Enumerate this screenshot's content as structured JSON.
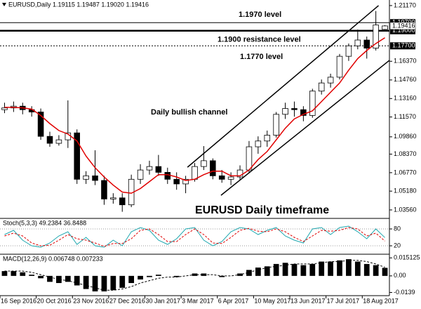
{
  "chart_data": [
    {
      "type": "candlestick",
      "title": "EURUSD,Daily  1.19115 1.19487 1.19020 1.19416",
      "subtitle": "EURUSD Daily timeframe",
      "categories": [
        "16 Sep 2016",
        null,
        null,
        null,
        "20 Oct 2016",
        null,
        null,
        null,
        "23 Nov 2016",
        null,
        null,
        null,
        "27 Dec 2016",
        null,
        null,
        null,
        "30 Jan 2017",
        null,
        null,
        null,
        "3 Mar 2017",
        null,
        null,
        null,
        "6 Apr 2017",
        null,
        null,
        null,
        "10 May 2017",
        null,
        null,
        null,
        "13 Jun 2017",
        null,
        null,
        null,
        "17 Jul 2017",
        null,
        null,
        null,
        "18 Aug 2017",
        null,
        null
      ],
      "open": [
        1.122,
        1.1235,
        1.125,
        1.122,
        1.12,
        1.099,
        1.093,
        1.096,
        1.102,
        1.062,
        1.065,
        1.061,
        1.045,
        1.046,
        1.04,
        1.062,
        1.07,
        1.073,
        1.068,
        1.062,
        1.058,
        1.062,
        1.073,
        1.078,
        1.065,
        1.062,
        1.064,
        1.07,
        1.09,
        1.095,
        1.1,
        1.118,
        1.123,
        1.122,
        1.117,
        1.138,
        1.145,
        1.15,
        1.168,
        1.177,
        1.182,
        1.175,
        1.19115
      ],
      "high": [
        1.128,
        1.129,
        1.128,
        1.125,
        1.123,
        1.103,
        1.1,
        1.13,
        1.105,
        1.069,
        1.087,
        1.065,
        1.05,
        1.05,
        1.066,
        1.075,
        1.078,
        1.083,
        1.072,
        1.068,
        1.065,
        1.076,
        1.0906,
        1.08,
        1.07,
        1.068,
        1.074,
        1.095,
        1.099,
        1.104,
        1.12,
        1.128,
        1.129,
        1.125,
        1.14,
        1.148,
        1.153,
        1.17,
        1.179,
        1.191,
        1.185,
        1.207,
        1.19487
      ],
      "low": [
        1.119,
        1.12,
        1.118,
        1.116,
        1.096,
        1.09,
        1.091,
        1.089,
        1.058,
        1.058,
        1.057,
        1.04,
        1.041,
        1.034,
        1.038,
        1.058,
        1.066,
        1.065,
        1.058,
        1.053,
        1.05,
        1.06,
        1.07,
        1.062,
        1.059,
        1.057,
        1.061,
        1.068,
        1.084,
        1.09,
        1.098,
        1.114,
        1.116,
        1.112,
        1.115,
        1.135,
        1.141,
        1.148,
        1.164,
        1.174,
        1.166,
        1.173,
        1.1902
      ],
      "close": [
        1.1235,
        1.125,
        1.122,
        1.12,
        1.099,
        1.093,
        1.096,
        1.102,
        1.062,
        1.065,
        1.061,
        1.045,
        1.046,
        1.04,
        1.062,
        1.07,
        1.073,
        1.068,
        1.062,
        1.058,
        1.062,
        1.073,
        1.078,
        1.065,
        1.062,
        1.064,
        1.07,
        1.09,
        1.095,
        1.1,
        1.118,
        1.123,
        1.122,
        1.117,
        1.138,
        1.145,
        1.15,
        1.168,
        1.177,
        1.182,
        1.175,
        1.195,
        1.19416
      ],
      "up_color": "#ffffff",
      "down_color": "#000000",
      "ma": {
        "color": "#e00000",
        "values": [
          1.124,
          1.124,
          1.1235,
          1.1225,
          1.117,
          1.11,
          1.104,
          1.101,
          1.095,
          1.082,
          1.072,
          1.064,
          1.057,
          1.051,
          1.05,
          1.054,
          1.06,
          1.066,
          1.066,
          1.064,
          1.061,
          1.062,
          1.066,
          1.069,
          1.069,
          1.065,
          1.065,
          1.07,
          1.079,
          1.086,
          1.096,
          1.106,
          1.114,
          1.118,
          1.121,
          1.129,
          1.137,
          1.145,
          1.156,
          1.166,
          1.173,
          1.179,
          1.184
        ]
      },
      "ylim": [
        1.0289,
        1.2165
      ],
      "yticks": [
        {
          "value": 1.2117,
          "label": "1.21170"
        },
        {
          "value": 1.1637,
          "label": "1.16370"
        },
        {
          "value": 1.1476,
          "label": "1.14760"
        },
        {
          "value": 1.1316,
          "label": "1.13160"
        },
        {
          "value": 1.1157,
          "label": "1.11570"
        },
        {
          "value": 1.0986,
          "label": "1.09860"
        },
        {
          "value": 1.0837,
          "label": "1.08370"
        },
        {
          "value": 1.0677,
          "label": "1.06770"
        },
        {
          "value": 1.0518,
          "label": "1.05180"
        },
        {
          "value": 1.0356,
          "label": "1.03560"
        }
      ],
      "levels": [
        {
          "value": 1.197,
          "label": "1.19700",
          "annotation": "1.1970 level",
          "style": "thin"
        },
        {
          "value": 1.19,
          "label": "1.19000",
          "annotation": "1.1900 resistance level",
          "style": "thick"
        },
        {
          "value": 1.177,
          "label": "1.17700",
          "annotation": "1.1770 level",
          "style": "dotted"
        }
      ],
      "price_tag": {
        "value": 1.19416,
        "label": "1.19416"
      },
      "channel_label": "Daily bullish channel",
      "channels": [
        {
          "x": [
            20.2,
            41.3
          ],
          "y": [
            1.0724,
            1.2117
          ]
        },
        {
          "x": [
            23.9,
            42.5
          ],
          "y": [
            1.0482,
            1.1645
          ]
        }
      ]
    },
    {
      "type": "line",
      "title": "Stoch(5,3,3) 49.2384 36.8488",
      "series": [
        {
          "color": "#20a8b0",
          "dashed": false,
          "values": [
            60,
            75,
            40,
            20,
            15,
            30,
            55,
            70,
            25,
            50,
            20,
            15,
            40,
            20,
            70,
            85,
            75,
            40,
            25,
            45,
            80,
            85,
            40,
            20,
            35,
            70,
            85,
            80,
            60,
            75,
            85,
            55,
            40,
            30,
            80,
            85,
            60,
            85,
            90,
            70,
            45,
            80,
            49.2384
          ]
        },
        {
          "color": "#e00000",
          "dashed": true,
          "values": [
            55,
            65,
            55,
            30,
            20,
            22,
            40,
            60,
            45,
            40,
            30,
            18,
            28,
            28,
            45,
            75,
            80,
            60,
            35,
            35,
            60,
            80,
            60,
            30,
            28,
            50,
            75,
            82,
            72,
            70,
            80,
            70,
            50,
            35,
            55,
            75,
            72,
            75,
            85,
            80,
            55,
            65,
            36.8488
          ]
        }
      ],
      "ylim": [
        0,
        100
      ],
      "yticks": [
        20,
        80
      ]
    },
    {
      "type": "macd",
      "title": "MACD(12,26,9) 0.006748 0.007233",
      "color": "#000000",
      "values": [
        0.004,
        0.004,
        0.003,
        0.001,
        -0.002,
        -0.005,
        -0.006,
        -0.005,
        -0.008,
        -0.011,
        -0.013,
        -0.013,
        -0.012,
        -0.01,
        -0.006,
        -0.003,
        -0.001,
        0.001,
        0.0,
        -0.001,
        0.0,
        0.002,
        0.002,
        0.0,
        -0.001,
        0.0,
        0.002,
        0.005,
        0.007,
        0.008,
        0.01,
        0.011,
        0.01,
        0.009,
        0.01,
        0.012,
        0.012,
        0.013,
        0.014,
        0.012,
        0.01,
        0.009,
        0.006748
      ],
      "signal": {
        "color": "#000000",
        "values": [
          0.004,
          0.004,
          0.004,
          0.003,
          0.001,
          -0.001,
          -0.003,
          -0.004,
          -0.006,
          -0.008,
          -0.01,
          -0.012,
          -0.012,
          -0.011,
          -0.009,
          -0.006,
          -0.004,
          -0.002,
          -0.001,
          -0.001,
          0.0,
          0.001,
          0.001,
          0.001,
          0.0,
          0.0,
          0.001,
          0.003,
          0.005,
          0.007,
          0.008,
          0.009,
          0.01,
          0.01,
          0.01,
          0.011,
          0.012,
          0.012,
          0.013,
          0.013,
          0.012,
          0.01,
          0.007233
        ]
      },
      "ylim": [
        -0.016,
        0.017
      ],
      "yticks": [
        0.015125,
        {
          "value": 0,
          "label": "0.00"
        },
        -0.0139
      ]
    }
  ]
}
